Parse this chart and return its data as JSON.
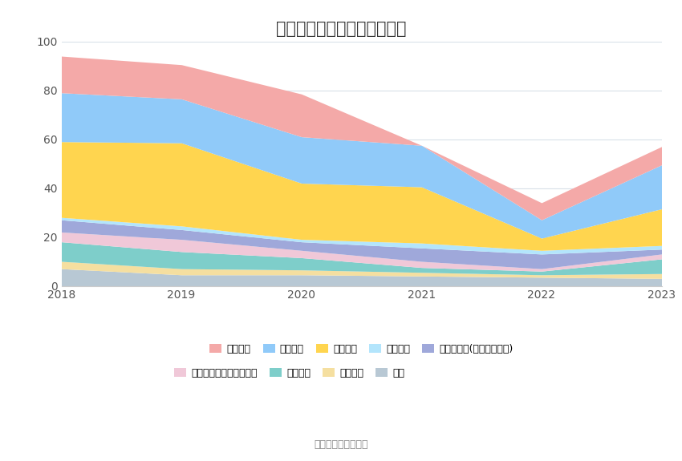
{
  "title": "历年主要负债堆积图（亿元）",
  "years": [
    2018,
    2019,
    2020,
    2021,
    2022,
    2023
  ],
  "source": "数据来源：恒生聚源",
  "series": [
    {
      "name": "其它",
      "color": "#b8c8d4",
      "values": [
        7.0,
        4.5,
        4.5,
        4.0,
        3.5,
        3.0
      ]
    },
    {
      "name": "预计负债",
      "color": "#f5dfa0",
      "values": [
        3.0,
        2.5,
        2.0,
        1.5,
        1.0,
        2.0
      ]
    },
    {
      "name": "长期借款",
      "color": "#7ececa",
      "values": [
        8.0,
        7.0,
        5.0,
        2.0,
        1.5,
        6.0
      ]
    },
    {
      "name": "一年内到期的非流动负债",
      "color": "#f0c8d8",
      "values": [
        4.0,
        5.0,
        3.0,
        2.5,
        1.0,
        2.0
      ]
    },
    {
      "name": "其他应付款(含利息和股利)",
      "color": "#9fa8da",
      "values": [
        5.0,
        4.0,
        3.5,
        5.5,
        6.0,
        2.0
      ]
    },
    {
      "name": "合同负债",
      "color": "#b3e5fc",
      "values": [
        1.0,
        1.5,
        1.0,
        2.0,
        1.5,
        1.5
      ]
    },
    {
      "name": "应付账款",
      "color": "#ffd54f",
      "values": [
        31.0,
        34.0,
        23.0,
        23.0,
        5.0,
        15.0
      ]
    },
    {
      "name": "应付票据",
      "color": "#90caf9",
      "values": [
        20.0,
        18.0,
        19.0,
        17.0,
        7.5,
        18.0
      ]
    },
    {
      "name": "短期借款",
      "color": "#f4a9a8",
      "values": [
        15.0,
        14.0,
        17.5,
        0.0,
        7.0,
        7.5
      ]
    }
  ],
  "ylim": [
    0,
    100
  ],
  "yticks": [
    0,
    20,
    40,
    60,
    80,
    100
  ],
  "bg_color": "#ffffff",
  "plot_bg_color": "#ffffff",
  "grid_color": "#d8e0e8",
  "title_fontsize": 15,
  "legend_fontsize": 9,
  "axis_fontsize": 10
}
